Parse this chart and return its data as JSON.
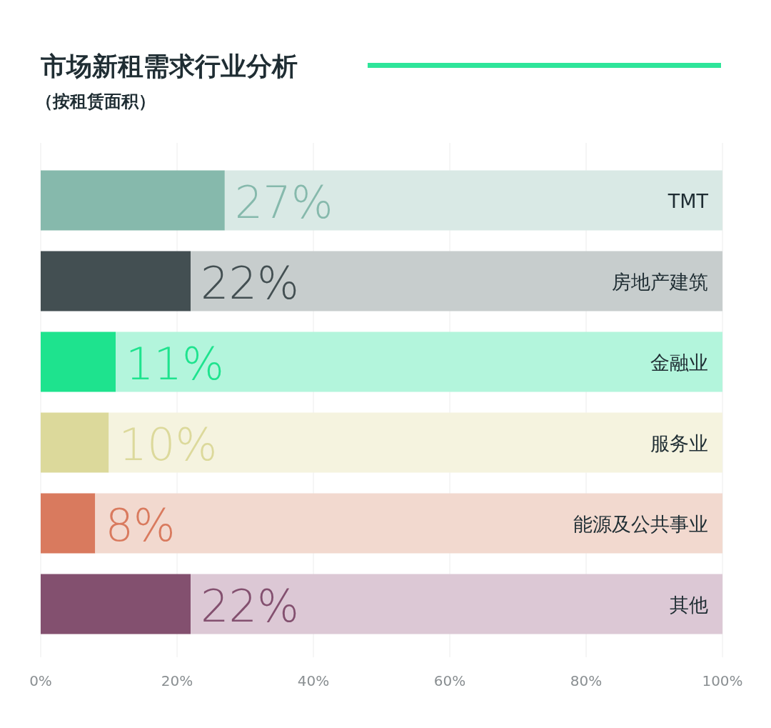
{
  "chart_data": {
    "type": "bar",
    "orientation": "horizontal",
    "stacked": true,
    "title": "市场新租需求行业分析",
    "subtitle": "（按租赁面积）",
    "categories": [
      "TMT",
      "房地产建筑",
      "金融业",
      "服务业",
      "能源及公共事业",
      "其他"
    ],
    "series": [
      {
        "colors": [
          "#86b9ac",
          "#434f52",
          "#1ee38e",
          "#dcd99b",
          "#d97a5e",
          "#83506f"
        ],
        "values": [
          27,
          22,
          11,
          10,
          8,
          22
        ],
        "value_labels": [
          "27%",
          "22%",
          "11%",
          "10%",
          "8%",
          "22%"
        ]
      },
      {
        "colors": [
          "#d9e9e5",
          "#c7cdcd",
          "#b3f5dc",
          "#f5f3df",
          "#f2d9cf",
          "#dcc8d5"
        ],
        "values": [
          73,
          78,
          89,
          90,
          92,
          78
        ]
      }
    ],
    "xlim": [
      0,
      100
    ],
    "xticks": [
      {
        "value": 0,
        "label": "0%"
      },
      {
        "value": 20,
        "label": "20%"
      },
      {
        "value": 40,
        "label": "40%"
      },
      {
        "value": 60,
        "label": "60%"
      },
      {
        "value": 80,
        "label": "80%"
      },
      {
        "value": 100,
        "label": "100%"
      }
    ],
    "grid": "x"
  }
}
